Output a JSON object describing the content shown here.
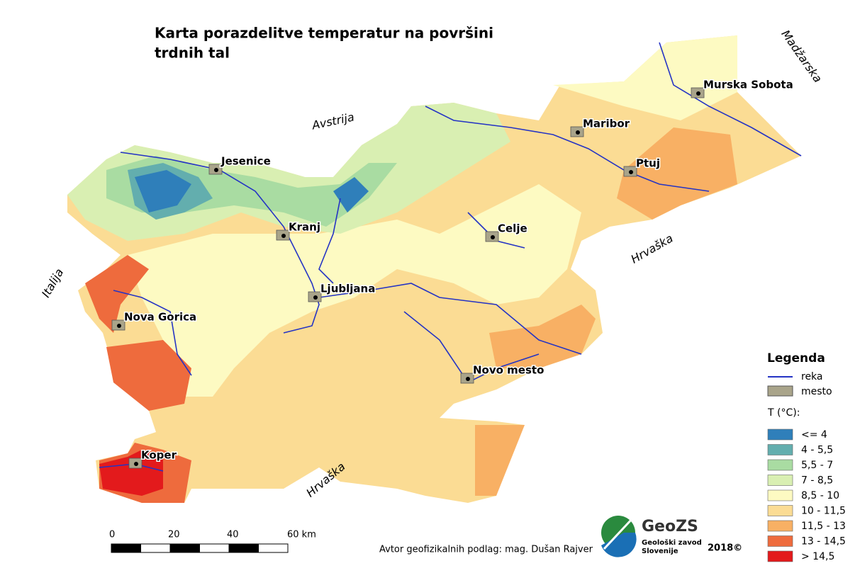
{
  "title": {
    "line1": "Karta porazdelitve temperatur na površini",
    "line2": "trdnih tal"
  },
  "neighbors": [
    "Avstrija",
    "Madžarska",
    "Hrvaška",
    "Hrvaška",
    "Italija"
  ],
  "cities": [
    "Jesenice",
    "Kranj",
    "Ljubljana",
    "Nova Gorica",
    "Koper",
    "Celje",
    "Maribor",
    "Ptuj",
    "Murska Sobota",
    "Novo mesto"
  ],
  "legend": {
    "title": "Legenda",
    "river": "reka",
    "town": "mesto",
    "temperature_title": "T (°C):",
    "classes": [
      {
        "label": "<= 4",
        "color": "#2f7fba"
      },
      {
        "label": "4 - 5,5",
        "color": "#63aeae"
      },
      {
        "label": "5,5 - 7",
        "color": "#a9dca2"
      },
      {
        "label": "7 - 8,5",
        "color": "#d9efb2"
      },
      {
        "label": "8,5 - 10",
        "color": "#fdfac2"
      },
      {
        "label": "10 - 11,5",
        "color": "#fbdc94"
      },
      {
        "label": "11,5 - 13",
        "color": "#f8b064"
      },
      {
        "label": "13 - 14,5",
        "color": "#ee6b3d"
      },
      {
        "label": "> 14,5",
        "color": "#e31a1c"
      }
    ]
  },
  "scale_bar": {
    "labels": [
      "0",
      "20",
      "40",
      "60 km"
    ]
  },
  "author": "Avtor geofizikalnih podlag: mag. Dušan Rajver",
  "logo": {
    "name": "GeoZS",
    "line1": "Geološki zavod",
    "line2": "Slovenije"
  },
  "year": "2018©"
}
